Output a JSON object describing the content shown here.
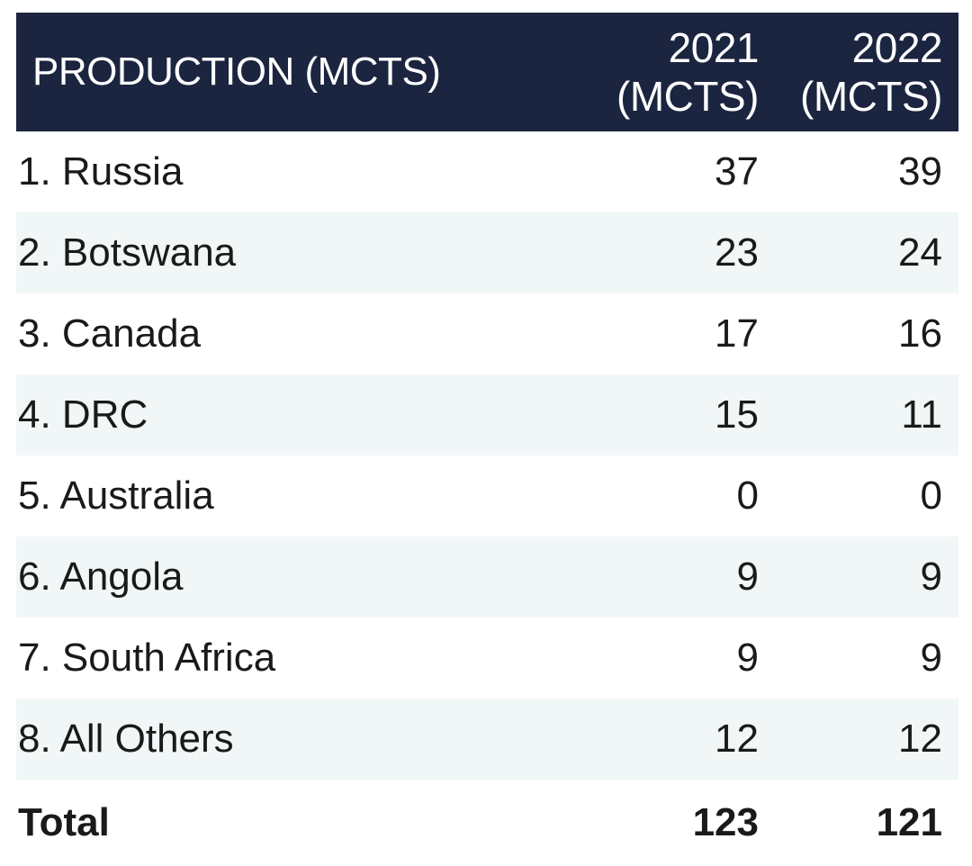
{
  "chart_data": {
    "type": "table",
    "columns": [
      "PRODUCTION (MCTS)",
      "2021\n(MCTS)",
      "2022\n(MCTS)"
    ],
    "header": {
      "country": "PRODUCTION (MCTS)",
      "col_2021_line1": "2021",
      "col_2021_line2": "(MCTS)",
      "col_2022_line1": "2022",
      "col_2022_line2": "(MCTS)"
    },
    "rows": [
      {
        "country": "1. Russia",
        "y2021": "37",
        "y2022": "39"
      },
      {
        "country": "2. Botswana",
        "y2021": "23",
        "y2022": "24"
      },
      {
        "country": "3. Canada",
        "y2021": "17",
        "y2022": "16"
      },
      {
        "country": "4. DRC",
        "y2021": "15",
        "y2022": "11"
      },
      {
        "country": "5. Australia",
        "y2021": "0",
        "y2022": "0"
      },
      {
        "country": "6. Angola",
        "y2021": "9",
        "y2022": "9"
      },
      {
        "country": "7. South Africa",
        "y2021": "9",
        "y2022": "9"
      },
      {
        "country": "8. All Others",
        "y2021": "12",
        "y2022": "12"
      }
    ],
    "total": {
      "label": "Total",
      "y2021": "123",
      "y2022": "121"
    }
  },
  "colors": {
    "header_bg": "#1b2540",
    "alt_row_bg": "#f1f6f7"
  }
}
